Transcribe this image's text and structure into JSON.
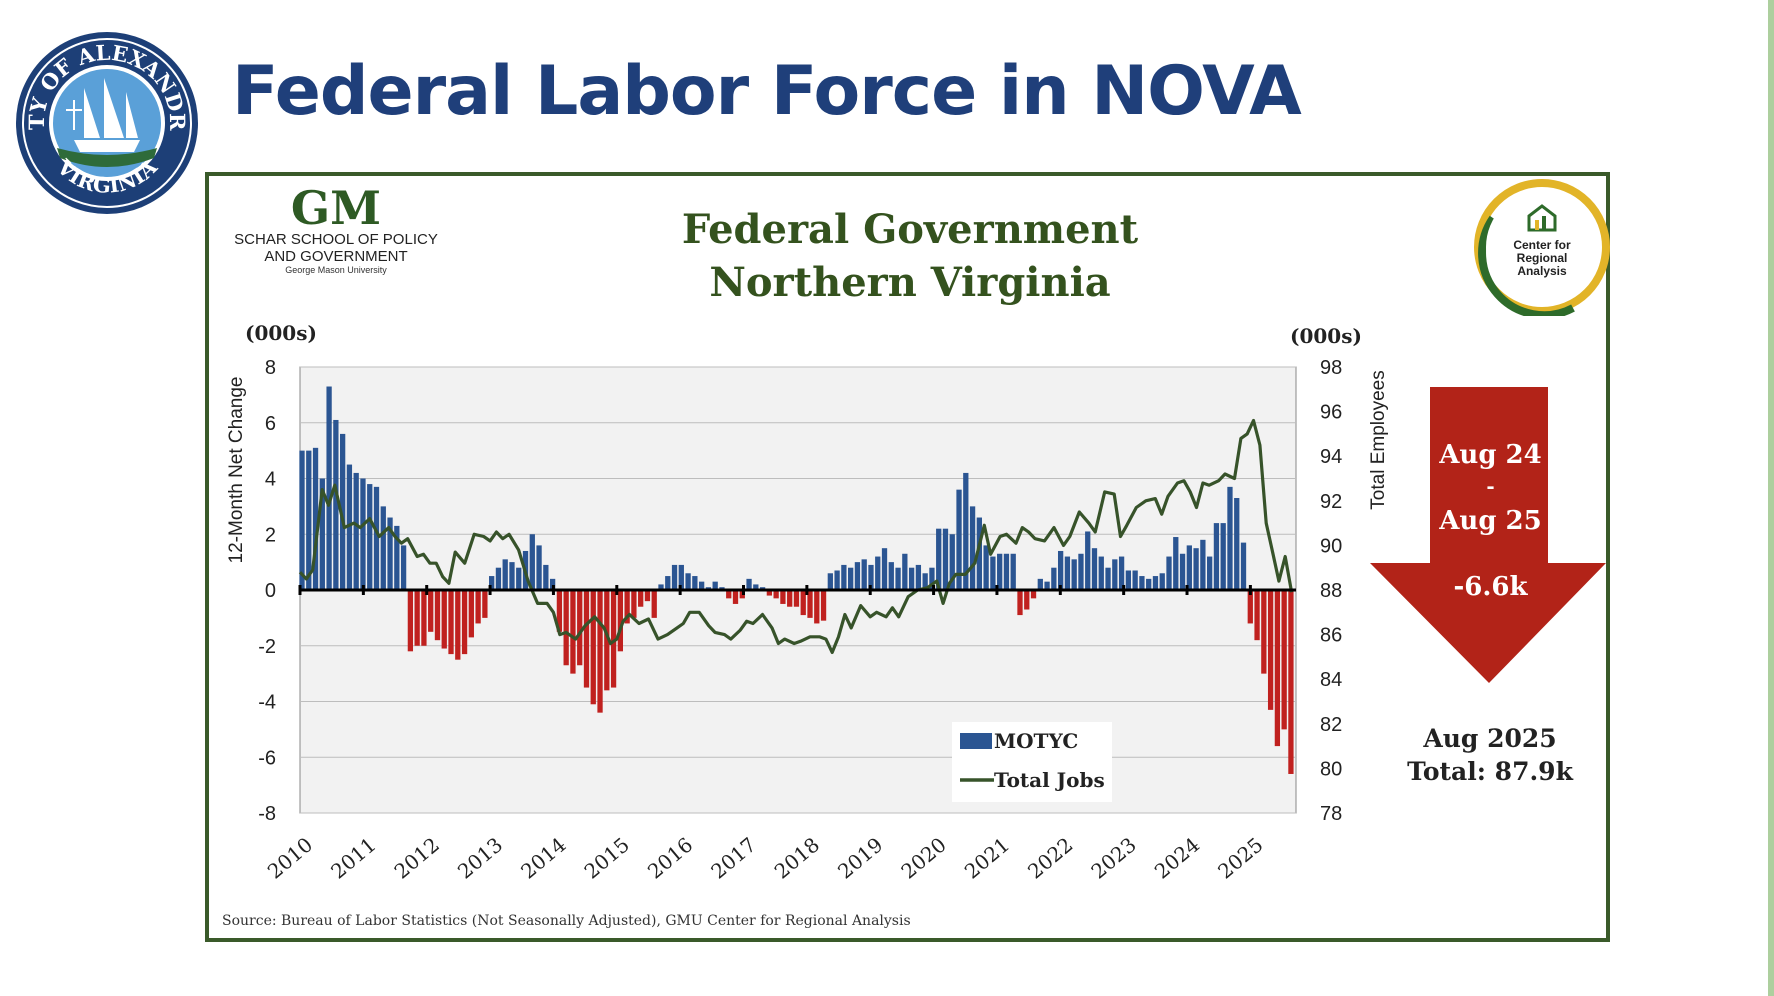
{
  "slide": {
    "title": "Federal Labor Force in NOVA"
  },
  "seal": {
    "text_top": "CITY OF ALEXANDRIA",
    "text_bottom": "VIRGINIA"
  },
  "gmu_logo": {
    "mark": "GM",
    "line1": "SCHAR SCHOOL OF POLICY",
    "line2": "AND GOVERNMENT",
    "line3": "George Mason University"
  },
  "cra_logo": {
    "line1": "Center for",
    "line2": "Regional",
    "line3": "Analysis"
  },
  "callout": {
    "line1": "Aug 24",
    "line2": "-",
    "line3": "Aug 25",
    "change": "-6.6k",
    "total_line1": "Aug 2025",
    "total_line2": "Total: 87.9k"
  },
  "source_note": "Source: Bureau of Labor Statistics (Not Seasonally Adjusted), GMU Center for Regional Analysis",
  "colors": {
    "bar_positive": "#2b5592",
    "bar_negative": "#c0211f",
    "line": "#37532a",
    "frame": "#3a5a2a",
    "arrow": "#b22318",
    "title": "#1f3f7a"
  },
  "chart_data": {
    "type": "bar",
    "title_line1": "Federal Government",
    "title_line2": "Northern Virginia",
    "unit_left": "(000s)",
    "unit_right": "(000s)",
    "ylabel": "12-Month Net Change",
    "y2label": "Total Employees",
    "ylim": [
      -8,
      8
    ],
    "y2lim": [
      78,
      98
    ],
    "yticks": [
      "8",
      "6",
      "4",
      "2",
      "0",
      "-2",
      "-4",
      "-6",
      "-8"
    ],
    "y2ticks": [
      "98",
      "96",
      "94",
      "92",
      "90",
      "88",
      "86",
      "84",
      "82",
      "80",
      "78"
    ],
    "xticks": [
      "2010",
      "2011",
      "2012",
      "2013",
      "2014",
      "2015",
      "2016",
      "2017",
      "2018",
      "2019",
      "2020",
      "2021",
      "2022",
      "2023",
      "2024",
      "2025"
    ],
    "grid": true,
    "legend": {
      "position": "bottom-right",
      "entries": [
        "MOTYC",
        "Total Jobs"
      ]
    },
    "series": [
      {
        "name": "MOTYC",
        "type": "bar",
        "values": [
          5.0,
          5.0,
          5.1,
          4.0,
          7.3,
          6.1,
          5.6,
          4.5,
          4.2,
          4.0,
          3.8,
          3.7,
          3.0,
          2.6,
          2.3,
          1.6,
          -2.2,
          -2.0,
          -2.0,
          -1.5,
          -1.8,
          -2.1,
          -2.3,
          -2.5,
          -2.3,
          -1.7,
          -1.2,
          -1.0,
          0.5,
          0.8,
          1.1,
          1.0,
          0.8,
          1.4,
          2.0,
          1.6,
          0.9,
          0.4,
          -1.5,
          -2.7,
          -3.0,
          -2.7,
          -3.5,
          -4.1,
          -4.4,
          -3.6,
          -3.5,
          -2.2,
          -1.2,
          -1.0,
          -0.6,
          -0.4,
          -1.0,
          0.2,
          0.5,
          0.9,
          0.9,
          0.6,
          0.5,
          0.3,
          0.1,
          0.3,
          0.1,
          -0.3,
          -0.5,
          -0.3,
          0.4,
          0.2,
          0.1,
          -0.2,
          -0.3,
          -0.5,
          -0.6,
          -0.6,
          -0.9,
          -1.0,
          -1.2,
          -1.1,
          0.6,
          0.7,
          0.9,
          0.8,
          1.0,
          1.1,
          0.9,
          1.2,
          1.5,
          1.0,
          0.8,
          1.3,
          0.8,
          0.9,
          0.6,
          0.8,
          2.2,
          2.2,
          2.0,
          3.6,
          4.2,
          3.0,
          2.6,
          1.6,
          1.2,
          1.3,
          1.3,
          1.3,
          -0.9,
          -0.7,
          -0.3,
          0.4,
          0.3,
          0.8,
          1.4,
          1.2,
          1.1,
          1.3,
          2.1,
          1.5,
          1.2,
          0.8,
          1.1,
          1.2,
          0.7,
          0.7,
          0.5,
          0.4,
          0.5,
          0.6,
          1.2,
          1.9,
          1.3,
          1.6,
          1.5,
          1.8,
          1.2,
          2.4,
          2.4,
          3.7,
          3.3,
          1.7,
          -1.2,
          -1.8,
          -3.0,
          -4.3,
          -5.6,
          -5.0,
          -6.6
        ]
      },
      {
        "name": "Total Jobs",
        "type": "line",
        "points": [
          [
            2010.0,
            88.8
          ],
          [
            2010.1,
            88.5
          ],
          [
            2010.2,
            88.9
          ],
          [
            2010.35,
            92.5
          ],
          [
            2010.45,
            91.8
          ],
          [
            2010.55,
            92.7
          ],
          [
            2010.7,
            90.8
          ],
          [
            2010.85,
            91.0
          ],
          [
            2010.95,
            90.8
          ],
          [
            2011.1,
            91.2
          ],
          [
            2011.25,
            90.4
          ],
          [
            2011.4,
            90.8
          ],
          [
            2011.5,
            90.4
          ],
          [
            2011.6,
            90.1
          ],
          [
            2011.7,
            90.3
          ],
          [
            2011.85,
            89.5
          ],
          [
            2011.95,
            89.6
          ],
          [
            2012.05,
            89.2
          ],
          [
            2012.15,
            89.2
          ],
          [
            2012.25,
            88.6
          ],
          [
            2012.35,
            88.3
          ],
          [
            2012.45,
            89.7
          ],
          [
            2012.6,
            89.2
          ],
          [
            2012.75,
            90.5
          ],
          [
            2012.9,
            90.4
          ],
          [
            2013.0,
            90.2
          ],
          [
            2013.1,
            90.6
          ],
          [
            2013.2,
            90.3
          ],
          [
            2013.3,
            90.5
          ],
          [
            2013.45,
            89.8
          ],
          [
            2013.6,
            88.4
          ],
          [
            2013.75,
            87.4
          ],
          [
            2013.9,
            87.4
          ],
          [
            2014.0,
            87.0
          ],
          [
            2014.1,
            86.0
          ],
          [
            2014.2,
            86.1
          ],
          [
            2014.35,
            85.8
          ],
          [
            2014.5,
            86.4
          ],
          [
            2014.65,
            86.8
          ],
          [
            2014.8,
            86.3
          ],
          [
            2014.9,
            85.6
          ],
          [
            2015.0,
            85.8
          ],
          [
            2015.1,
            86.6
          ],
          [
            2015.2,
            86.9
          ],
          [
            2015.35,
            86.5
          ],
          [
            2015.5,
            86.7
          ],
          [
            2015.65,
            85.8
          ],
          [
            2015.8,
            86.0
          ],
          [
            2015.95,
            86.3
          ],
          [
            2016.05,
            86.5
          ],
          [
            2016.15,
            87.0
          ],
          [
            2016.3,
            87.0
          ],
          [
            2016.45,
            86.4
          ],
          [
            2016.55,
            86.1
          ],
          [
            2016.7,
            86.0
          ],
          [
            2016.8,
            85.8
          ],
          [
            2016.95,
            86.2
          ],
          [
            2017.05,
            86.6
          ],
          [
            2017.15,
            86.5
          ],
          [
            2017.3,
            86.9
          ],
          [
            2017.45,
            86.3
          ],
          [
            2017.55,
            85.6
          ],
          [
            2017.65,
            85.8
          ],
          [
            2017.8,
            85.6
          ],
          [
            2017.9,
            85.7
          ],
          [
            2018.05,
            85.9
          ],
          [
            2018.2,
            85.9
          ],
          [
            2018.3,
            85.8
          ],
          [
            2018.4,
            85.2
          ],
          [
            2018.5,
            85.9
          ],
          [
            2018.6,
            86.9
          ],
          [
            2018.7,
            86.3
          ],
          [
            2018.85,
            87.3
          ],
          [
            2019.0,
            86.8
          ],
          [
            2019.1,
            87.0
          ],
          [
            2019.25,
            86.8
          ],
          [
            2019.35,
            87.2
          ],
          [
            2019.45,
            86.8
          ],
          [
            2019.6,
            87.7
          ],
          [
            2019.75,
            88.0
          ],
          [
            2019.9,
            88.1
          ],
          [
            2020.05,
            88.4
          ],
          [
            2020.15,
            87.4
          ],
          [
            2020.25,
            88.3
          ],
          [
            2020.35,
            88.7
          ],
          [
            2020.5,
            88.7
          ],
          [
            2020.65,
            89.2
          ],
          [
            2020.8,
            90.9
          ],
          [
            2020.9,
            89.6
          ],
          [
            2021.05,
            90.4
          ],
          [
            2021.15,
            90.5
          ],
          [
            2021.3,
            90.1
          ],
          [
            2021.4,
            90.8
          ],
          [
            2021.5,
            90.6
          ],
          [
            2021.6,
            90.3
          ],
          [
            2021.75,
            90.2
          ],
          [
            2021.9,
            90.8
          ],
          [
            2022.05,
            90.0
          ],
          [
            2022.15,
            90.4
          ],
          [
            2022.3,
            91.5
          ],
          [
            2022.45,
            91.0
          ],
          [
            2022.55,
            90.6
          ],
          [
            2022.7,
            92.4
          ],
          [
            2022.85,
            92.3
          ],
          [
            2022.95,
            90.4
          ],
          [
            2023.05,
            90.9
          ],
          [
            2023.2,
            91.7
          ],
          [
            2023.35,
            92.0
          ],
          [
            2023.5,
            92.1
          ],
          [
            2023.6,
            91.4
          ],
          [
            2023.7,
            92.2
          ],
          [
            2023.85,
            92.8
          ],
          [
            2023.95,
            92.9
          ],
          [
            2024.05,
            92.4
          ],
          [
            2024.15,
            91.7
          ],
          [
            2024.25,
            92.8
          ],
          [
            2024.35,
            92.7
          ],
          [
            2024.5,
            92.9
          ],
          [
            2024.6,
            93.2
          ],
          [
            2024.75,
            93.0
          ],
          [
            2024.85,
            94.8
          ],
          [
            2024.95,
            95.0
          ],
          [
            2025.05,
            95.6
          ],
          [
            2025.15,
            94.5
          ],
          [
            2025.25,
            91.0
          ],
          [
            2025.35,
            89.7
          ],
          [
            2025.45,
            88.4
          ],
          [
            2025.55,
            89.5
          ],
          [
            2025.65,
            87.9
          ]
        ]
      }
    ]
  }
}
